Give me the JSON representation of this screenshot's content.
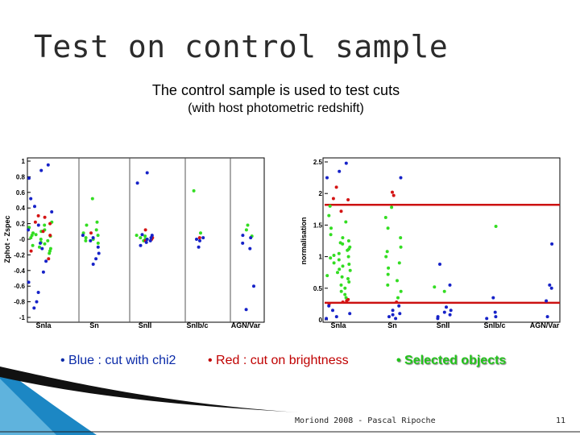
{
  "slide": {
    "title": "Test on control sample",
    "subtitle_line1": "The control sample is used to test cuts",
    "subtitle_line2": "(with host photometric redshift)",
    "legend": [
      {
        "text": "• Blue : cut with chi2",
        "color": "#0a2aa8"
      },
      {
        "text": "• Red : cut on brightness",
        "color": "#c00000"
      },
      {
        "text": "• Selected objects",
        "color": "#22c41a"
      }
    ],
    "footer_text": "Moriond 2008 - Pascal Ripoche",
    "page_number": "11"
  },
  "colors": {
    "blue": "#1622c8",
    "red": "#d41414",
    "green": "#33dd22",
    "line_red": "#cc1111",
    "axis": "#000000"
  },
  "chart_data": [
    {
      "type": "scatter",
      "ylabel": "Zphot - Zspec",
      "ylim": [
        -1,
        1
      ],
      "yticks": [
        "1",
        "0.8",
        "0.6",
        "0.4",
        "0.2",
        "-0",
        "-0.2",
        "-0.4",
        "-0.6",
        "-0.8",
        "-1"
      ],
      "categories": [
        "SnIa",
        "Sn",
        "SnII",
        "SnIb/c",
        "AGN/Var"
      ],
      "series": [
        {
          "name": "blue",
          "points": [
            [
              0,
              0.95
            ],
            [
              0,
              0.88
            ],
            [
              0,
              0.78
            ],
            [
              0,
              0.52
            ],
            [
              0,
              0.42
            ],
            [
              0,
              0.35
            ],
            [
              0,
              0.18
            ],
            [
              0,
              0.12
            ],
            [
              0,
              -0.05
            ],
            [
              0,
              -0.12
            ],
            [
              0,
              -0.28
            ],
            [
              0,
              -0.42
            ],
            [
              0,
              -0.55
            ],
            [
              0,
              -0.68
            ],
            [
              0,
              -0.8
            ],
            [
              0,
              -0.88
            ],
            [
              1,
              -0.02
            ],
            [
              1,
              0.05
            ],
            [
              1,
              -0.1
            ],
            [
              1,
              -0.18
            ],
            [
              1,
              0.02
            ],
            [
              1,
              -0.25
            ],
            [
              1,
              -0.32
            ],
            [
              2,
              0.85
            ],
            [
              2,
              0.72
            ],
            [
              2,
              0.05
            ],
            [
              2,
              -0.02
            ],
            [
              2,
              0.02
            ],
            [
              2,
              -0.08
            ],
            [
              2,
              0.06
            ],
            [
              2,
              0
            ],
            [
              2,
              -0.04
            ],
            [
              3,
              -0.1
            ],
            [
              3,
              -0.02
            ],
            [
              3,
              0.02
            ],
            [
              3,
              0
            ],
            [
              4,
              0.05
            ],
            [
              4,
              0.02
            ],
            [
              4,
              -0.12
            ],
            [
              4,
              -0.05
            ],
            [
              4,
              -0.6
            ],
            [
              4,
              -0.9
            ]
          ]
        },
        {
          "name": "red",
          "points": [
            [
              0,
              0.3
            ],
            [
              0,
              0.22
            ],
            [
              0,
              0.2
            ],
            [
              0,
              0.1
            ],
            [
              0,
              0.05
            ],
            [
              0,
              0.28
            ],
            [
              0,
              -0.15
            ],
            [
              0,
              -0.25
            ],
            [
              1,
              0.08
            ],
            [
              2,
              0
            ],
            [
              2,
              -0.02
            ],
            [
              2,
              0.02
            ],
            [
              2,
              0.12
            ],
            [
              3,
              0.02
            ]
          ]
        },
        {
          "name": "green",
          "points": [
            [
              0,
              0.05
            ],
            [
              0,
              0.02
            ],
            [
              0,
              -0.02
            ],
            [
              0,
              0.08
            ],
            [
              0,
              -0.08
            ],
            [
              0,
              0.12
            ],
            [
              0,
              -0.12
            ],
            [
              0,
              0.18
            ],
            [
              0,
              0.22
            ],
            [
              0,
              -0.18
            ],
            [
              0,
              0.0
            ],
            [
              0,
              0.04
            ],
            [
              0,
              -0.04
            ],
            [
              0,
              0.06
            ],
            [
              0,
              -0.06
            ],
            [
              0,
              0.1
            ],
            [
              0,
              -0.1
            ],
            [
              0,
              0.15
            ],
            [
              0,
              -0.15
            ],
            [
              1,
              0.52
            ],
            [
              1,
              0.05
            ],
            [
              1,
              0.02
            ],
            [
              1,
              -0.02
            ],
            [
              1,
              0.0
            ],
            [
              1,
              0.08
            ],
            [
              1,
              -0.05
            ],
            [
              1,
              0.12
            ],
            [
              1,
              0.22
            ],
            [
              1,
              0.18
            ],
            [
              2,
              0.05
            ],
            [
              2,
              0.02
            ],
            [
              2,
              0.0
            ],
            [
              2,
              -0.02
            ],
            [
              2,
              0.04
            ],
            [
              3,
              0.62
            ],
            [
              3,
              0.08
            ],
            [
              4,
              0.12
            ],
            [
              4,
              0.18
            ],
            [
              4,
              0.04
            ]
          ]
        }
      ]
    },
    {
      "type": "scatter",
      "ylabel": "normalisation",
      "ylim": [
        0,
        2.5
      ],
      "yticks": [
        "2.5",
        "2",
        "1.5",
        "1",
        "0.5",
        "0"
      ],
      "categories": [
        "SnIa",
        "Sn",
        "SnII",
        "SnIb/c",
        "AGN/Var"
      ],
      "cut_lines": [
        0.27,
        1.82
      ],
      "series": [
        {
          "name": "blue",
          "points": [
            [
              0,
              2.48
            ],
            [
              0,
              2.35
            ],
            [
              0,
              2.25
            ],
            [
              0,
              0.22
            ],
            [
              0,
              0.15
            ],
            [
              0,
              0.1
            ],
            [
              0,
              0.05
            ],
            [
              0,
              0.02
            ],
            [
              1,
              2.25
            ],
            [
              1,
              0.22
            ],
            [
              1,
              0.15
            ],
            [
              1,
              0.1
            ],
            [
              1,
              0.08
            ],
            [
              1,
              0.05
            ],
            [
              1,
              0.02
            ],
            [
              2,
              0.88
            ],
            [
              2,
              0.55
            ],
            [
              2,
              0.2
            ],
            [
              2,
              0.15
            ],
            [
              2,
              0.12
            ],
            [
              2,
              0.08
            ],
            [
              2,
              0.05
            ],
            [
              2,
              0.02
            ],
            [
              3,
              0.35
            ],
            [
              3,
              0.12
            ],
            [
              3,
              0.05
            ],
            [
              3,
              0.02
            ],
            [
              4,
              1.2
            ],
            [
              4,
              0.5
            ],
            [
              4,
              0.55
            ],
            [
              4,
              0.3
            ],
            [
              4,
              0.05
            ]
          ]
        },
        {
          "name": "red",
          "points": [
            [
              0,
              2.1
            ],
            [
              0,
              1.92
            ],
            [
              0,
              1.9
            ],
            [
              0,
              1.72
            ],
            [
              0,
              0.32
            ],
            [
              0,
              0.28
            ],
            [
              0,
              0.25
            ],
            [
              0,
              0.3
            ],
            [
              1,
              2.02
            ],
            [
              1,
              1.97
            ],
            [
              1,
              0.28
            ]
          ]
        },
        {
          "name": "green",
          "points": [
            [
              0,
              1.8
            ],
            [
              0,
              1.65
            ],
            [
              0,
              1.55
            ],
            [
              0,
              1.45
            ],
            [
              0,
              1.35
            ],
            [
              0,
              1.3
            ],
            [
              0,
              1.25
            ],
            [
              0,
              1.2
            ],
            [
              0,
              1.15
            ],
            [
              0,
              1.1
            ],
            [
              0,
              1.05
            ],
            [
              0,
              1.0
            ],
            [
              0,
              0.95
            ],
            [
              0,
              0.9
            ],
            [
              0,
              0.85
            ],
            [
              0,
              0.8
            ],
            [
              0,
              0.75
            ],
            [
              0,
              0.7
            ],
            [
              0,
              0.65
            ],
            [
              0,
              0.6
            ],
            [
              0,
              0.55
            ],
            [
              0,
              0.5
            ],
            [
              0,
              0.45
            ],
            [
              0,
              0.4
            ],
            [
              0,
              0.35
            ],
            [
              0,
              1.02
            ],
            [
              0,
              0.98
            ],
            [
              0,
              0.88
            ],
            [
              0,
              0.78
            ],
            [
              0,
              0.68
            ],
            [
              0,
              1.12
            ],
            [
              0,
              1.22
            ],
            [
              1,
              1.78
            ],
            [
              1,
              1.62
            ],
            [
              1,
              1.45
            ],
            [
              1,
              1.3
            ],
            [
              1,
              1.15
            ],
            [
              1,
              1.0
            ],
            [
              1,
              0.9
            ],
            [
              1,
              0.82
            ],
            [
              1,
              0.72
            ],
            [
              1,
              0.62
            ],
            [
              1,
              0.55
            ],
            [
              1,
              0.45
            ],
            [
              1,
              0.35
            ],
            [
              1,
              1.08
            ],
            [
              2,
              0.52
            ],
            [
              2,
              0.45
            ],
            [
              3,
              1.48
            ]
          ]
        }
      ]
    }
  ]
}
